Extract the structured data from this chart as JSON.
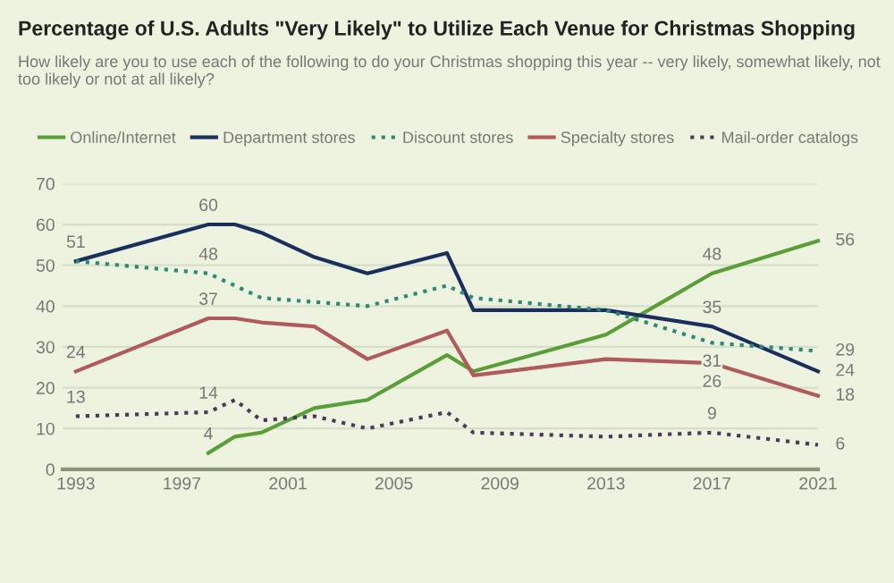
{
  "chart_data": {
    "type": "line",
    "title": "Percentage of U.S. Adults \"Very Likely\" to Utilize Each Venue for Christmas Shopping",
    "subtitle": "How likely are you to use each of the following to do your Christmas shopping this year -- very likely, somewhat likely, not too likely or not at all likely?",
    "xlim": [
      1992.5,
      2021
    ],
    "xticks": [
      1993,
      1997,
      2001,
      2005,
      2009,
      2013,
      2017,
      2021
    ],
    "ylim": [
      0,
      70
    ],
    "yticks": [
      0,
      10,
      20,
      30,
      40,
      50,
      60,
      70
    ],
    "grid": "y",
    "legend": "top left",
    "marker": "none",
    "series": [
      {
        "name": "Online/Internet",
        "color": "#5a9e3a",
        "line_style": "solid",
        "x": [
          1998,
          1999,
          2000,
          2002,
          2004,
          2007,
          2008,
          2013,
          2017,
          2021
        ],
        "values": [
          4,
          8,
          9,
          15,
          17,
          28,
          24,
          33,
          48,
          56
        ],
        "value_labels": [
          "4",
          null,
          null,
          null,
          null,
          null,
          null,
          null,
          "48",
          "56"
        ]
      },
      {
        "name": "Department stores",
        "color": "#1b2f5e",
        "line_style": "solid",
        "x": [
          1993,
          1998,
          1999,
          2000,
          2002,
          2004,
          2007,
          2008,
          2013,
          2017,
          2021
        ],
        "values": [
          51,
          60,
          60,
          58,
          52,
          48,
          53,
          39,
          39,
          35,
          24
        ],
        "value_labels": [
          "51",
          "60",
          null,
          null,
          null,
          null,
          null,
          null,
          null,
          "35",
          "24"
        ]
      },
      {
        "name": "Discount stores",
        "color": "#2a8a78",
        "line_style": "dotted",
        "x": [
          1993,
          1998,
          2000,
          2002,
          2004,
          2007,
          2008,
          2013,
          2017,
          2021
        ],
        "values": [
          51,
          48,
          42,
          41,
          40,
          45,
          42,
          39,
          31,
          29
        ],
        "value_labels": [
          null,
          "48",
          null,
          null,
          null,
          null,
          null,
          null,
          "31",
          "29"
        ]
      },
      {
        "name": "Specialty stores",
        "color": "#b05a5a",
        "line_style": "solid",
        "x": [
          1993,
          1998,
          1999,
          2000,
          2002,
          2004,
          2007,
          2008,
          2013,
          2017,
          2021
        ],
        "values": [
          24,
          37,
          37,
          36,
          35,
          27,
          34,
          23,
          27,
          26,
          18
        ],
        "value_labels": [
          "24",
          "37",
          null,
          null,
          null,
          null,
          null,
          null,
          null,
          "26",
          "18"
        ]
      },
      {
        "name": "Mail-order catalogs",
        "color": "#4a3b5c",
        "line_style": "dotted",
        "x": [
          1993,
          1998,
          1999,
          2000,
          2002,
          2004,
          2007,
          2008,
          2013,
          2017,
          2021
        ],
        "values": [
          13,
          14,
          17,
          12,
          13,
          10,
          14,
          9,
          8,
          9,
          6
        ],
        "value_labels": [
          "13",
          "14",
          null,
          null,
          null,
          null,
          null,
          null,
          null,
          "9",
          "6"
        ]
      }
    ]
  }
}
